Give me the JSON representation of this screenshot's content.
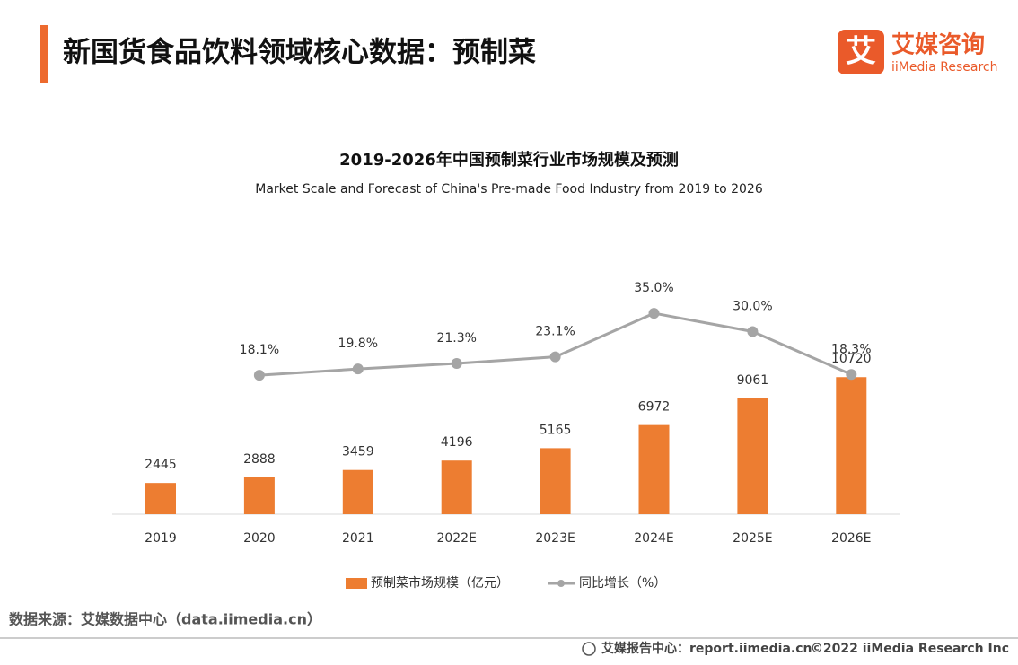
{
  "header": {
    "title": "新国货食品饮料领域核心数据：预制菜",
    "logo_cn": "艾媒咨询",
    "logo_en": "iiMedia Research",
    "logo_mark": "艾"
  },
  "chart_data": {
    "type": "bar-line",
    "title": "2019-2026年中国预制菜行业市场规模及预测",
    "subtitle": "Market Scale and Forecast of China's Pre-made Food Industry from 2019 to 2026",
    "categories": [
      "2019",
      "2020",
      "2021",
      "2022E",
      "2023E",
      "2024E",
      "2025E",
      "2026E"
    ],
    "series": [
      {
        "name": "预制菜市场规模（亿元）",
        "type": "bar",
        "color": "#ed7d31",
        "values": [
          2445,
          2888,
          3459,
          4196,
          5165,
          6972,
          9061,
          10720
        ]
      },
      {
        "name": "同比增长（%）",
        "type": "line",
        "axis": "y2",
        "color": "#a5a5a5",
        "values": [
          null,
          18.1,
          19.8,
          21.3,
          23.1,
          35.0,
          30.0,
          18.3
        ],
        "value_labels": [
          null,
          "18.1%",
          "19.8%",
          "21.3%",
          "23.1%",
          "35.0%",
          "30.0%",
          "18.3%"
        ]
      }
    ],
    "ylim": [
      0,
      12000
    ],
    "y2lim": [
      0,
      60
    ]
  },
  "footer": {
    "source": "数据来源：艾媒数据中心（data.iimedia.cn）",
    "report": "艾媒报告中心：report.iimedia.cn",
    "copyright": "©2022  iiMedia Research  Inc"
  }
}
